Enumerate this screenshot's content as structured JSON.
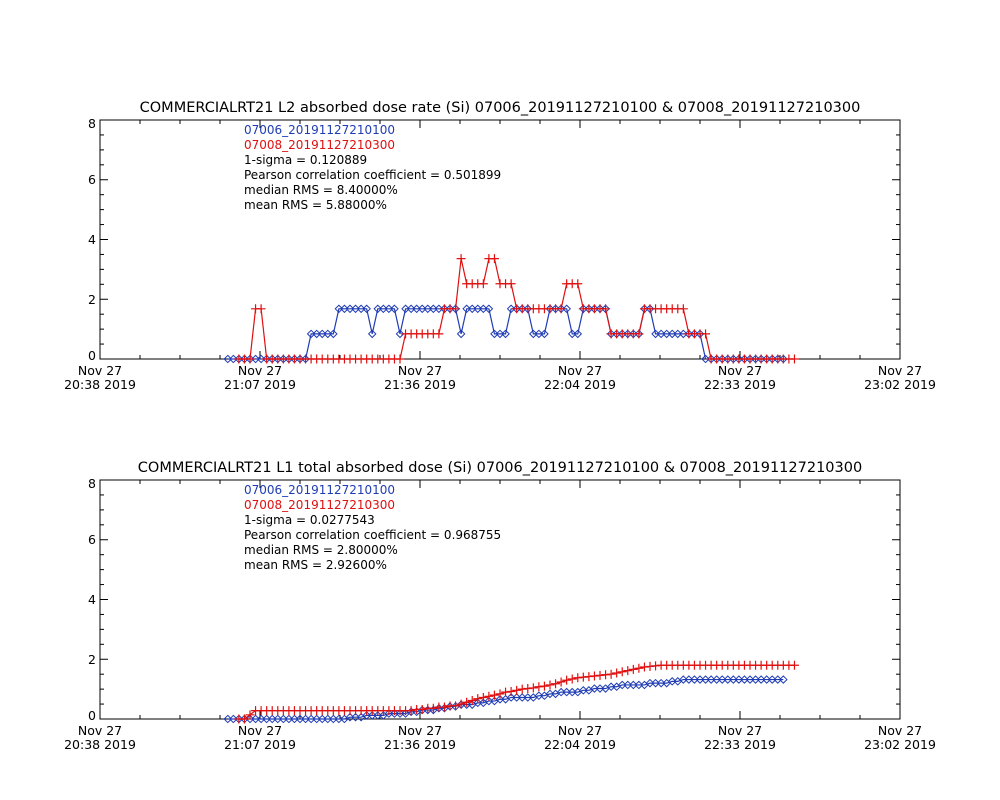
{
  "colors": {
    "series_a": "#1f3cb4",
    "series_b": "#e01010",
    "axis": "#000000"
  },
  "chart_data": [
    {
      "type": "line",
      "title": "COMMERCIALRT21 L2 absorbed dose rate (Si) 07006_20191127210100 & 07008_20191127210300",
      "xlabel": "",
      "ylabel": "",
      "xlim": [
        "2019-11-27 20:38",
        "2019-11-27 23:02"
      ],
      "ylim": [
        0,
        8
      ],
      "y_ticks": [
        "0",
        "2",
        "4",
        "6",
        "8"
      ],
      "x_ticks": [
        {
          "line1": "Nov 27",
          "line2": "20:38 2019"
        },
        {
          "line1": "Nov 27",
          "line2": "21:07 2019"
        },
        {
          "line1": "Nov 27",
          "line2": "21:36 2019"
        },
        {
          "line1": "Nov 27",
          "line2": "22:04 2019"
        },
        {
          "line1": "Nov 27",
          "line2": "22:33 2019"
        },
        {
          "line1": "Nov 27",
          "line2": "23:02 2019"
        }
      ],
      "legend_placement": "top-left",
      "annotations": {
        "sigma": "1-sigma = 0.120889",
        "pearson": "Pearson correlation coefficient = 0.501899",
        "median": "median RMS = 8.40000%",
        "mean": "mean RMS = 5.88000%"
      },
      "series": [
        {
          "name": "07006_20191127210100",
          "marker": "diamond",
          "color": "#1f3cb4",
          "x": [
            "21:01",
            "21:02",
            "21:03",
            "21:04",
            "21:05",
            "21:06",
            "21:07",
            "21:08",
            "21:09",
            "21:10",
            "21:11",
            "21:12",
            "21:13",
            "21:14",
            "21:15",
            "21:16",
            "21:17",
            "21:18",
            "21:19",
            "21:20",
            "21:21",
            "21:22",
            "21:23",
            "21:24",
            "21:25",
            "21:26",
            "21:27",
            "21:28",
            "21:29",
            "21:30",
            "21:31",
            "21:32",
            "21:33",
            "21:34",
            "21:35",
            "21:36",
            "21:37",
            "21:38",
            "21:39",
            "21:40",
            "21:41",
            "21:42",
            "21:43",
            "21:44",
            "21:45",
            "21:46",
            "21:47",
            "21:48",
            "21:49",
            "21:50",
            "21:51",
            "21:52",
            "21:53",
            "21:54",
            "21:55",
            "21:56",
            "21:57",
            "21:58",
            "21:59",
            "22:00",
            "22:01",
            "22:02",
            "22:03",
            "22:04",
            "22:05",
            "22:06",
            "22:07",
            "22:08",
            "22:09",
            "22:10",
            "22:11",
            "22:12",
            "22:13",
            "22:14",
            "22:15",
            "22:16",
            "22:17",
            "22:18",
            "22:19",
            "22:20",
            "22:21",
            "22:22",
            "22:23",
            "22:24",
            "22:25",
            "22:26",
            "22:27",
            "22:28",
            "22:29",
            "22:30",
            "22:31",
            "22:32",
            "22:33",
            "22:34",
            "22:35",
            "22:36",
            "22:37",
            "22:38",
            "22:39",
            "22:40",
            "22:41"
          ],
          "values": [
            0,
            0,
            0,
            0,
            0,
            0,
            0,
            0,
            0,
            0,
            0,
            0,
            0,
            0,
            0,
            0.84,
            0.84,
            0.84,
            0.84,
            0.84,
            1.68,
            1.68,
            1.68,
            1.68,
            1.68,
            1.68,
            0.84,
            1.68,
            1.68,
            1.68,
            1.68,
            0.84,
            1.68,
            1.68,
            1.68,
            1.68,
            1.68,
            1.68,
            1.68,
            1.68,
            1.68,
            1.68,
            0.84,
            1.68,
            1.68,
            1.68,
            1.68,
            1.68,
            0.84,
            0.84,
            0.84,
            1.68,
            1.68,
            1.68,
            1.68,
            0.84,
            0.84,
            0.84,
            1.68,
            1.68,
            1.68,
            1.68,
            0.84,
            0.84,
            1.68,
            1.68,
            1.68,
            1.68,
            1.68,
            0.84,
            0.84,
            0.84,
            0.84,
            0.84,
            0.84,
            1.68,
            1.68,
            0.84,
            0.84,
            0.84,
            0.84,
            0.84,
            0.84,
            0.84,
            0.84,
            0.84,
            0,
            0,
            0,
            0,
            0,
            0,
            0,
            0,
            0,
            0,
            0,
            0,
            0,
            0,
            0
          ]
        },
        {
          "name": "07008_20191127210300",
          "marker": "plus",
          "color": "#e01010",
          "x": [
            "21:03",
            "21:04",
            "21:05",
            "21:06",
            "21:07",
            "21:08",
            "21:09",
            "21:10",
            "21:11",
            "21:12",
            "21:13",
            "21:14",
            "21:15",
            "21:16",
            "21:17",
            "21:18",
            "21:19",
            "21:20",
            "21:21",
            "21:22",
            "21:23",
            "21:24",
            "21:25",
            "21:26",
            "21:27",
            "21:28",
            "21:29",
            "21:30",
            "21:31",
            "21:32",
            "21:33",
            "21:34",
            "21:35",
            "21:36",
            "21:37",
            "21:38",
            "21:39",
            "21:40",
            "21:41",
            "21:42",
            "21:43",
            "21:44",
            "21:45",
            "21:46",
            "21:47",
            "21:48",
            "21:49",
            "21:50",
            "21:51",
            "21:52",
            "21:53",
            "21:54",
            "21:55",
            "21:56",
            "21:57",
            "21:58",
            "21:59",
            "22:00",
            "22:01",
            "22:02",
            "22:03",
            "22:04",
            "22:05",
            "22:06",
            "22:07",
            "22:08",
            "22:09",
            "22:10",
            "22:11",
            "22:12",
            "22:13",
            "22:14",
            "22:15",
            "22:16",
            "22:17",
            "22:18",
            "22:19",
            "22:20",
            "22:21",
            "22:22",
            "22:23",
            "22:24",
            "22:25",
            "22:26",
            "22:27",
            "22:28",
            "22:29",
            "22:30",
            "22:31",
            "22:32",
            "22:33",
            "22:34",
            "22:35",
            "22:36",
            "22:37",
            "22:38",
            "22:39",
            "22:40",
            "22:41",
            "22:42",
            "22:43"
          ],
          "values": [
            0,
            0,
            0,
            1.68,
            1.68,
            0,
            0,
            0,
            0,
            0,
            0,
            0,
            0,
            0,
            0,
            0,
            0,
            0,
            0,
            0,
            0,
            0,
            0,
            0,
            0,
            0,
            0,
            0,
            0,
            0,
            0.84,
            0.84,
            0.84,
            0.84,
            0.84,
            0.84,
            0.84,
            1.68,
            1.68,
            1.68,
            3.36,
            2.52,
            2.52,
            2.52,
            2.52,
            3.36,
            3.36,
            2.52,
            2.52,
            2.52,
            1.68,
            1.68,
            1.68,
            1.68,
            1.68,
            1.68,
            1.68,
            1.68,
            1.68,
            2.52,
            2.52,
            2.52,
            1.68,
            1.68,
            1.68,
            1.68,
            1.68,
            0.84,
            0.84,
            0.84,
            0.84,
            0.84,
            0.84,
            1.68,
            1.68,
            1.68,
            1.68,
            1.68,
            1.68,
            1.68,
            1.68,
            0.84,
            0.84,
            0.84,
            0.84,
            0,
            0,
            0,
            0,
            0,
            0,
            0,
            0,
            0,
            0,
            0,
            0,
            0,
            0,
            0,
            0
          ]
        }
      ]
    },
    {
      "type": "line",
      "title": "COMMERCIALRT21 L1 total absorbed dose (Si) 07006_20191127210100 & 07008_20191127210300",
      "xlabel": "",
      "ylabel": "",
      "xlim": [
        "2019-11-27 20:38",
        "2019-11-27 23:02"
      ],
      "ylim": [
        0,
        8
      ],
      "y_ticks": [
        "0",
        "2",
        "4",
        "6",
        "8"
      ],
      "x_ticks": [
        {
          "line1": "Nov 27",
          "line2": "20:38 2019"
        },
        {
          "line1": "Nov 27",
          "line2": "21:07 2019"
        },
        {
          "line1": "Nov 27",
          "line2": "21:36 2019"
        },
        {
          "line1": "Nov 27",
          "line2": "22:04 2019"
        },
        {
          "line1": "Nov 27",
          "line2": "22:33 2019"
        },
        {
          "line1": "Nov 27",
          "line2": "23:02 2019"
        }
      ],
      "legend_placement": "top-left",
      "annotations": {
        "sigma": "1-sigma = 0.0277543",
        "pearson": "Pearson correlation coefficient = 0.968755",
        "median": "median RMS = 2.80000%",
        "mean": "mean RMS = 2.92600%"
      },
      "series": [
        {
          "name": "07006_20191127210100",
          "marker": "diamond",
          "color": "#1f3cb4",
          "x": [
            "21:01",
            "21:02",
            "21:03",
            "21:04",
            "21:05",
            "21:06",
            "21:07",
            "21:08",
            "21:09",
            "21:10",
            "21:11",
            "21:12",
            "21:13",
            "21:14",
            "21:15",
            "21:16",
            "21:17",
            "21:18",
            "21:19",
            "21:20",
            "21:21",
            "21:22",
            "21:23",
            "21:24",
            "21:25",
            "21:26",
            "21:27",
            "21:28",
            "21:29",
            "21:30",
            "21:31",
            "21:32",
            "21:33",
            "21:34",
            "21:35",
            "21:36",
            "21:37",
            "21:38",
            "21:39",
            "21:40",
            "21:41",
            "21:42",
            "21:43",
            "21:44",
            "21:45",
            "21:46",
            "21:47",
            "21:48",
            "21:49",
            "21:50",
            "21:51",
            "21:52",
            "21:53",
            "21:54",
            "21:55",
            "21:56",
            "21:57",
            "21:58",
            "21:59",
            "22:00",
            "22:01",
            "22:02",
            "22:03",
            "22:04",
            "22:05",
            "22:06",
            "22:07",
            "22:08",
            "22:09",
            "22:10",
            "22:11",
            "22:12",
            "22:13",
            "22:14",
            "22:15",
            "22:16",
            "22:17",
            "22:18",
            "22:19",
            "22:20",
            "22:21",
            "22:22",
            "22:23",
            "22:24",
            "22:25",
            "22:26",
            "22:27",
            "22:28",
            "22:29",
            "22:30",
            "22:31",
            "22:32",
            "22:33",
            "22:34",
            "22:35",
            "22:36",
            "22:37",
            "22:38",
            "22:39",
            "22:40",
            "22:41"
          ],
          "values": [
            0,
            0,
            0,
            0,
            0,
            0,
            0,
            0,
            0,
            0,
            0,
            0,
            0,
            0,
            0,
            0,
            0,
            0,
            0,
            0,
            0,
            0,
            0.06,
            0.06,
            0.06,
            0.12,
            0.12,
            0.12,
            0.12,
            0.18,
            0.18,
            0.18,
            0.18,
            0.24,
            0.24,
            0.3,
            0.3,
            0.3,
            0.36,
            0.36,
            0.42,
            0.42,
            0.48,
            0.48,
            0.48,
            0.54,
            0.54,
            0.6,
            0.6,
            0.66,
            0.66,
            0.72,
            0.72,
            0.72,
            0.72,
            0.72,
            0.78,
            0.78,
            0.84,
            0.84,
            0.9,
            0.9,
            0.9,
            0.9,
            0.96,
            0.96,
            1.02,
            1.02,
            1.02,
            1.08,
            1.08,
            1.14,
            1.14,
            1.14,
            1.14,
            1.14,
            1.2,
            1.2,
            1.2,
            1.2,
            1.26,
            1.26,
            1.32,
            1.32,
            1.32,
            1.32,
            1.32,
            1.32,
            1.32,
            1.32,
            1.32,
            1.32,
            1.32,
            1.32,
            1.32,
            1.32,
            1.32,
            1.32,
            1.32,
            1.32,
            1.32
          ]
        },
        {
          "name": "07008_20191127210300",
          "marker": "plus",
          "color": "#e01010",
          "x": [
            "21:03",
            "21:04",
            "21:05",
            "21:06",
            "21:07",
            "21:08",
            "21:09",
            "21:10",
            "21:11",
            "21:12",
            "21:13",
            "21:14",
            "21:15",
            "21:16",
            "21:17",
            "21:18",
            "21:19",
            "21:20",
            "21:21",
            "21:22",
            "21:23",
            "21:24",
            "21:25",
            "21:26",
            "21:27",
            "21:28",
            "21:29",
            "21:30",
            "21:31",
            "21:32",
            "21:33",
            "21:34",
            "21:35",
            "21:36",
            "21:37",
            "21:38",
            "21:39",
            "21:40",
            "21:41",
            "21:42",
            "21:43",
            "21:44",
            "21:45",
            "21:46",
            "21:47",
            "21:48",
            "21:49",
            "21:50",
            "21:51",
            "21:52",
            "21:53",
            "21:54",
            "21:55",
            "21:56",
            "21:57",
            "21:58",
            "21:59",
            "22:00",
            "22:01",
            "22:02",
            "22:03",
            "22:04",
            "22:05",
            "22:06",
            "22:07",
            "22:08",
            "22:09",
            "22:10",
            "22:11",
            "22:12",
            "22:13",
            "22:14",
            "22:15",
            "22:16",
            "22:17",
            "22:18",
            "22:19",
            "22:20",
            "22:21",
            "22:22",
            "22:23",
            "22:24",
            "22:25",
            "22:26",
            "22:27",
            "22:28",
            "22:29",
            "22:30",
            "22:31",
            "22:32",
            "22:33",
            "22:34",
            "22:35",
            "22:36",
            "22:37",
            "22:38",
            "22:39",
            "22:40",
            "22:41",
            "22:42",
            "22:43"
          ],
          "values": [
            0,
            0,
            0.14,
            0.28,
            0.28,
            0.28,
            0.28,
            0.28,
            0.28,
            0.28,
            0.28,
            0.28,
            0.28,
            0.28,
            0.28,
            0.28,
            0.28,
            0.28,
            0.28,
            0.28,
            0.28,
            0.28,
            0.28,
            0.28,
            0.28,
            0.28,
            0.28,
            0.28,
            0.28,
            0.28,
            0.28,
            0.28,
            0.32,
            0.32,
            0.36,
            0.36,
            0.4,
            0.4,
            0.44,
            0.44,
            0.5,
            0.56,
            0.62,
            0.68,
            0.72,
            0.76,
            0.8,
            0.84,
            0.9,
            0.92,
            0.96,
            1.0,
            1.02,
            1.04,
            1.08,
            1.1,
            1.14,
            1.18,
            1.24,
            1.3,
            1.34,
            1.38,
            1.4,
            1.42,
            1.44,
            1.46,
            1.48,
            1.5,
            1.54,
            1.58,
            1.62,
            1.66,
            1.7,
            1.74,
            1.76,
            1.78,
            1.8,
            1.8,
            1.8,
            1.8,
            1.8,
            1.8,
            1.8,
            1.8,
            1.8,
            1.8,
            1.8,
            1.8,
            1.8,
            1.8,
            1.8,
            1.8,
            1.8,
            1.8,
            1.8,
            1.8,
            1.8,
            1.8,
            1.8,
            1.8,
            1.8
          ]
        }
      ]
    }
  ]
}
